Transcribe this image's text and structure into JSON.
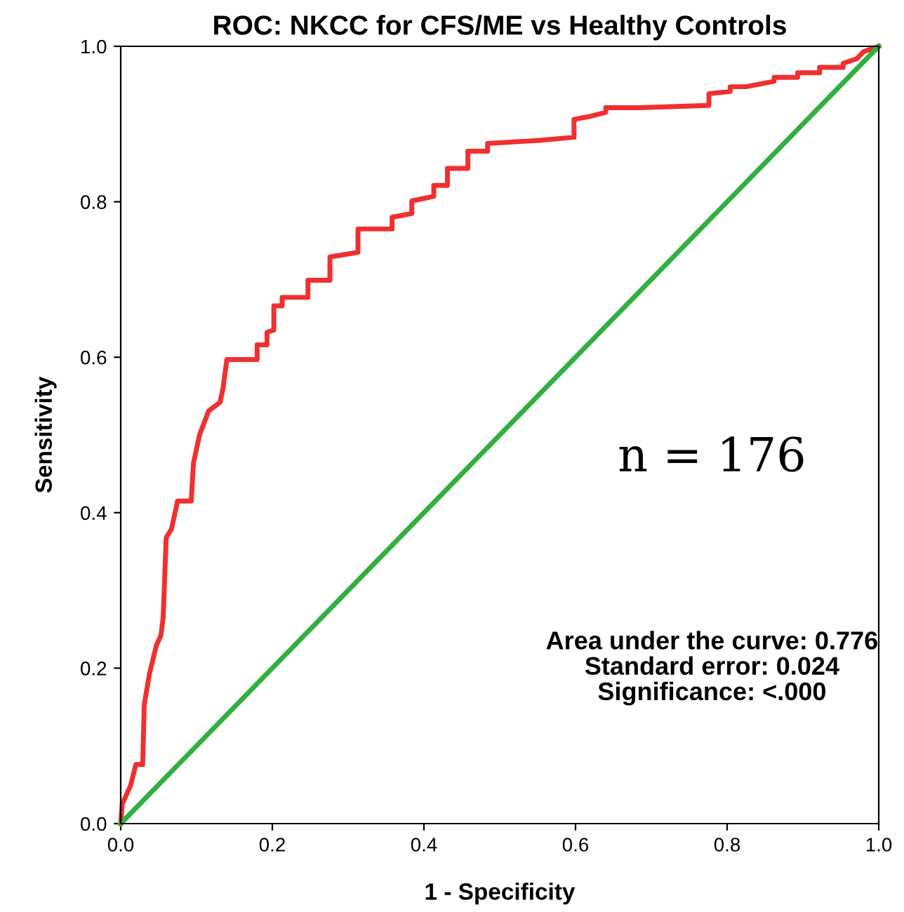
{
  "chart_data": {
    "type": "line",
    "title": "ROC: NKCC for CFS/ME vs Healthy Controls",
    "xlabel": "1 - Specificity",
    "ylabel": "Sensitivity",
    "xlim": [
      0,
      1
    ],
    "ylim": [
      0,
      1
    ],
    "xticks": [
      {
        "value": 0,
        "label": "0.0"
      },
      {
        "value": 0.2,
        "label": "0.2"
      },
      {
        "value": 0.4,
        "label": "0.4"
      },
      {
        "value": 0.6,
        "label": "0.6"
      },
      {
        "value": 0.8,
        "label": "0.8"
      },
      {
        "value": 1,
        "label": "1.0"
      }
    ],
    "yticks": [
      {
        "value": 0,
        "label": "0.0"
      },
      {
        "value": 0.2,
        "label": "0.2"
      },
      {
        "value": 0.4,
        "label": "0.4"
      },
      {
        "value": 0.6,
        "label": "0.6"
      },
      {
        "value": 0.8,
        "label": "0.8"
      },
      {
        "value": 1,
        "label": "1.0"
      }
    ],
    "grid": false,
    "marker": "none",
    "line_style": "solid",
    "series": [
      {
        "color": "#f03030",
        "x": [
          0,
          0.002,
          0.013,
          0.02,
          0.029,
          0.031,
          0.038,
          0.047,
          0.053,
          0.056,
          0.06,
          0.067,
          0.075,
          0.093,
          0.096,
          0.104,
          0.116,
          0.131,
          0.135,
          0.14,
          0.18,
          0.18,
          0.193,
          0.193,
          0.202,
          0.202,
          0.213,
          0.213,
          0.247,
          0.247,
          0.276,
          0.276,
          0.313,
          0.313,
          0.358,
          0.358,
          0.384,
          0.384,
          0.413,
          0.413,
          0.431,
          0.431,
          0.458,
          0.458,
          0.484,
          0.484,
          0.553,
          0.598,
          0.598,
          0.62,
          0.64,
          0.64,
          0.684,
          0.776,
          0.776,
          0.804,
          0.804,
          0.825,
          0.862,
          0.862,
          0.893,
          0.893,
          0.922,
          0.922,
          0.953,
          0.953,
          0.971,
          0.98,
          1
        ],
        "values": [
          0,
          0.025,
          0.049,
          0.076,
          0.076,
          0.153,
          0.193,
          0.229,
          0.242,
          0.265,
          0.368,
          0.379,
          0.415,
          0.415,
          0.464,
          0.5,
          0.531,
          0.542,
          0.56,
          0.597,
          0.597,
          0.616,
          0.616,
          0.632,
          0.635,
          0.666,
          0.666,
          0.677,
          0.677,
          0.699,
          0.699,
          0.729,
          0.735,
          0.765,
          0.765,
          0.78,
          0.785,
          0.801,
          0.807,
          0.821,
          0.821,
          0.843,
          0.843,
          0.865,
          0.865,
          0.875,
          0.879,
          0.883,
          0.906,
          0.91,
          0.915,
          0.921,
          0.921,
          0.924,
          0.939,
          0.942,
          0.948,
          0.948,
          0.955,
          0.96,
          0.96,
          0.966,
          0.966,
          0.973,
          0.973,
          0.978,
          0.984,
          0.993,
          1
        ]
      },
      {
        "color": "#30b040",
        "x": [
          0,
          1
        ],
        "values": [
          0,
          1
        ]
      }
    ],
    "annotations": [
      "n = 176",
      "Area under the curve: 0.776\nStandard error: 0.024\nSignificance: <.000"
    ]
  }
}
